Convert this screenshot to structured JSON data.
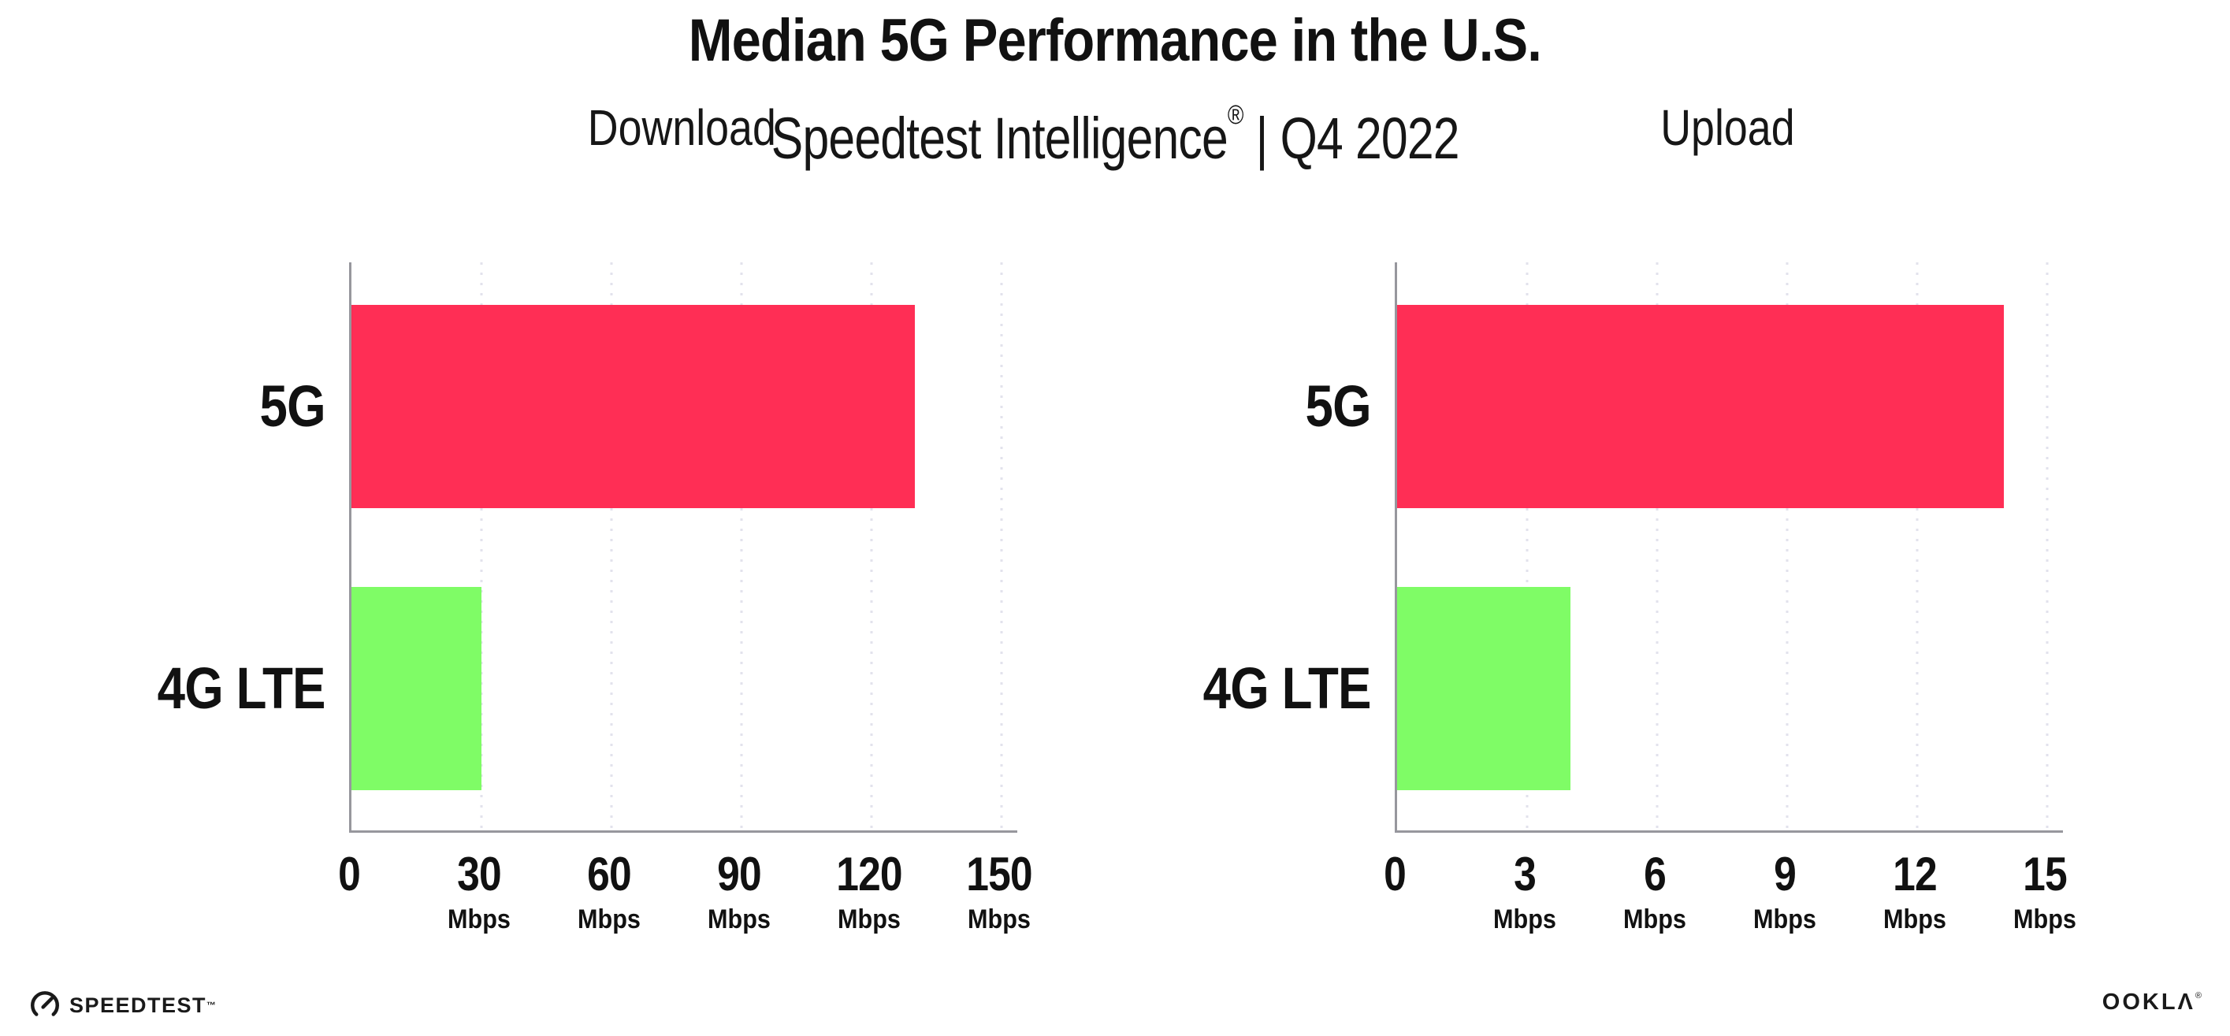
{
  "header": {
    "title": "Median 5G Performance in the U.S.",
    "subtitle": {
      "brand": "Speedtest Intelligence",
      "mark": "®",
      "rest": " | Q4 2022"
    }
  },
  "chart_data": [
    {
      "type": "bar",
      "orientation": "horizontal",
      "title": "Download",
      "categories": [
        "5G",
        "4G LTE"
      ],
      "values": [
        130,
        30
      ],
      "unit": "Mbps",
      "xlim": [
        0,
        150
      ],
      "xticks": [
        0,
        30,
        60,
        90,
        120,
        150
      ],
      "xtick_unit": "Mbps",
      "bar_colors": [
        "#ff2e55",
        "#7ffc66"
      ],
      "grid": "dotted-vertical",
      "legend": "none"
    },
    {
      "type": "bar",
      "orientation": "horizontal",
      "title": "Upload",
      "categories": [
        "5G",
        "4G LTE"
      ],
      "values": [
        14,
        4
      ],
      "unit": "Mbps",
      "xlim": [
        0,
        15
      ],
      "xticks": [
        0,
        3,
        6,
        9,
        12,
        15
      ],
      "xtick_unit": "Mbps",
      "bar_colors": [
        "#ff2e55",
        "#7ffc66"
      ],
      "grid": "dotted-vertical",
      "legend": "none"
    }
  ],
  "footer": {
    "speedtest_label": "SPEEDTEST",
    "speedtest_mark": "™",
    "ookla_label": "OOKLΛ",
    "ookla_mark": "®"
  },
  "colors": {
    "bar_5g": "#ff2e55",
    "bar_4g_lte": "#7ffc66",
    "axis": "#97979d",
    "gridline": "#e2e2ec",
    "text": "#111111"
  }
}
